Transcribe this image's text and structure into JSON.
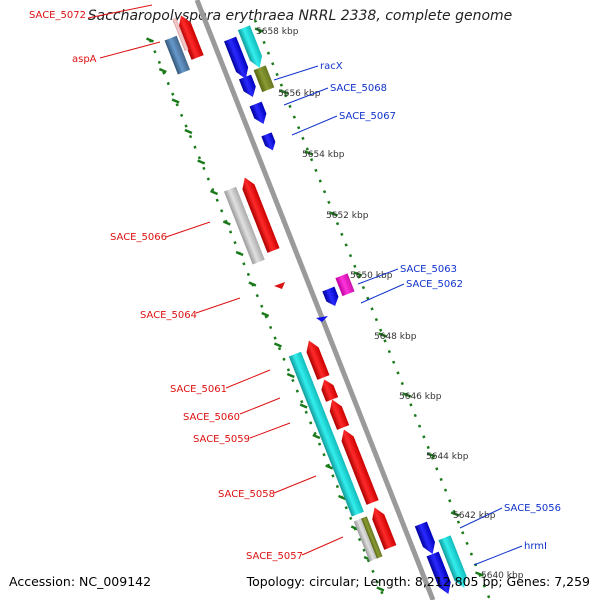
{
  "title": "Saccharopolyspora erythraea NRRL 2338, complete genome",
  "footer": {
    "accession": "Accession: NC_009142",
    "topology": "Topology: circular; Length: 8,212,805 bp; Genes: 7,259"
  },
  "colors": {
    "backbone": "#9a9a9a",
    "tick": "#1a7a1a",
    "left_label": "#dd1111",
    "right_label": "#1133cc",
    "gene_red": "#ff1a1a",
    "gene_blue": "#1010ee",
    "gene_cyan": "#22dddd",
    "gene_gray": "#c8c8c8",
    "gene_olive": "#7a8a2a",
    "gene_magenta": "#ff22cc"
  },
  "scale_labels": [
    "5658 kbp",
    "5656 kbp",
    "5654 kbp",
    "5652 kbp",
    "5650 kbp",
    "5648 kbp",
    "5646 kbp",
    "5644 kbp",
    "5642 kbp",
    "5640 kbp"
  ],
  "left_labels": [
    "SACE_5072",
    "aspA",
    "SACE_5066",
    "SACE_5064",
    "SACE_5061",
    "SACE_5060",
    "SACE_5059",
    "SACE_5058",
    "SACE_5057"
  ],
  "right_labels": [
    "racX",
    "SACE_5068",
    "SACE_5067",
    "SACE_5063",
    "SACE_5062",
    "SACE_5056",
    "hrmI"
  ]
}
